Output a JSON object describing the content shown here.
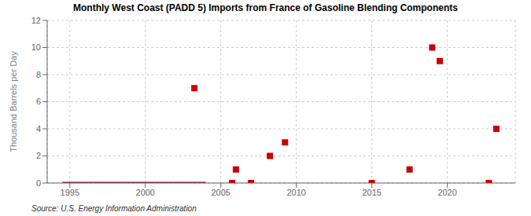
{
  "chart_data": {
    "type": "scatter",
    "title": "Monthly West Coast (PADD 5) Imports from France of Gasoline Blending Components",
    "ylabel": "Thousand Barrels per Day",
    "source": "Source: U.S. Energy Information Administration",
    "xlim": [
      1993.5,
      2024.5
    ],
    "xticks": [
      1995,
      2000,
      2005,
      2010,
      2015,
      2020
    ],
    "ylim": [
      0,
      12
    ],
    "yticks": [
      0,
      2,
      4,
      6,
      8,
      10,
      12
    ],
    "grid": true,
    "series": [
      {
        "type": "line",
        "color": "#8b1a1a",
        "line_style": "solid",
        "x": [
          1994.5,
          2004.0
        ],
        "values": [
          0,
          0
        ]
      },
      {
        "type": "scatter",
        "color": "#cc0000",
        "marker": "square",
        "x": [
          2003.25,
          2006.0,
          2008.25,
          2009.25,
          2017.5,
          2019.0,
          2019.5,
          2023.25
        ],
        "values": [
          7.0,
          1.0,
          2.0,
          3.0,
          1.0,
          10.0,
          9.0,
          4.0
        ]
      },
      {
        "type": "scatter",
        "color": "#cc0000",
        "marker": "square",
        "x": [
          2005.75,
          2007.0,
          2015.0,
          2022.75
        ],
        "values": [
          0.0,
          0.0,
          0.0,
          0.0
        ]
      }
    ]
  }
}
